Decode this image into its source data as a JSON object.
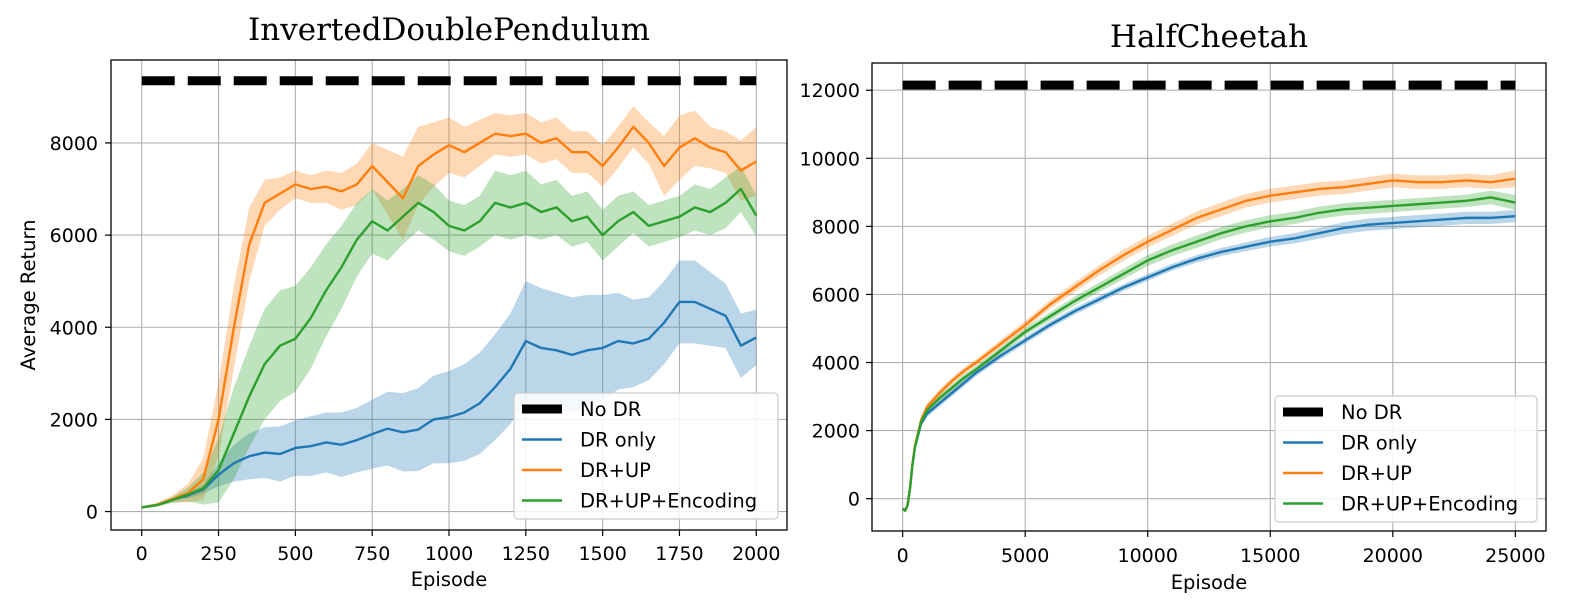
{
  "chart_data": [
    {
      "type": "line",
      "title": "InvertedDoublePendulum",
      "xlabel": "Episode",
      "ylabel": "Average Return",
      "xlim": [
        -100,
        2100
      ],
      "ylim": [
        -400,
        9800
      ],
      "xticks": [
        0,
        250,
        500,
        750,
        1000,
        1250,
        1500,
        1750,
        2000
      ],
      "yticks": [
        0,
        2000,
        4000,
        6000,
        8000
      ],
      "grid": true,
      "legend_position": "lower right",
      "baseline": {
        "name": "No DR",
        "value": 9350,
        "color": "#000000"
      },
      "series": [
        {
          "name": "DR only",
          "color": "#1f77b4",
          "x": [
            0,
            50,
            100,
            150,
            200,
            250,
            300,
            350,
            400,
            450,
            500,
            550,
            600,
            650,
            700,
            750,
            800,
            850,
            900,
            950,
            1000,
            1050,
            1100,
            1150,
            1200,
            1250,
            1300,
            1350,
            1400,
            1450,
            1500,
            1550,
            1600,
            1650,
            1700,
            1750,
            1800,
            1850,
            1900,
            1950,
            2000
          ],
          "values": [
            90,
            140,
            260,
            350,
            480,
            800,
            1050,
            1200,
            1280,
            1250,
            1380,
            1420,
            1500,
            1450,
            1550,
            1680,
            1800,
            1720,
            1780,
            2000,
            2050,
            2150,
            2350,
            2700,
            3100,
            3700,
            3550,
            3500,
            3400,
            3500,
            3550,
            3700,
            3650,
            3750,
            4100,
            4550,
            4550,
            4400,
            4250,
            3600,
            3780
          ],
          "band_width": [
            20,
            30,
            40,
            60,
            100,
            250,
            400,
            500,
            550,
            600,
            600,
            650,
            650,
            700,
            700,
            750,
            800,
            850,
            900,
            950,
            1000,
            1050,
            1100,
            1150,
            1200,
            1300,
            1300,
            1250,
            1250,
            1200,
            1150,
            1050,
            950,
            900,
            900,
            900,
            900,
            800,
            700,
            700,
            600
          ]
        },
        {
          "name": "DR+UP",
          "color": "#ff7f0e",
          "x": [
            0,
            50,
            100,
            150,
            200,
            250,
            300,
            350,
            400,
            450,
            500,
            550,
            600,
            650,
            700,
            750,
            800,
            850,
            900,
            950,
            1000,
            1050,
            1100,
            1150,
            1200,
            1250,
            1300,
            1350,
            1400,
            1450,
            1500,
            1550,
            1600,
            1650,
            1700,
            1750,
            1800,
            1850,
            1900,
            1950,
            2000
          ],
          "values": [
            90,
            150,
            270,
            400,
            700,
            2000,
            4000,
            5800,
            6700,
            6900,
            7100,
            7000,
            7050,
            6950,
            7100,
            7500,
            7150,
            6800,
            7500,
            7750,
            7950,
            7800,
            8000,
            8200,
            8150,
            8200,
            8000,
            8100,
            7800,
            7800,
            7500,
            7900,
            8350,
            8000,
            7500,
            7900,
            8100,
            7900,
            7800,
            7400,
            7600
          ],
          "band_width": [
            20,
            40,
            80,
            200,
            450,
            800,
            900,
            800,
            500,
            350,
            300,
            300,
            350,
            400,
            450,
            500,
            700,
            900,
            850,
            700,
            600,
            550,
            500,
            450,
            450,
            450,
            450,
            450,
            450,
            450,
            450,
            450,
            450,
            450,
            650,
            700,
            600,
            450,
            450,
            650,
            750
          ]
        },
        {
          "name": "DR+UP+Encoding",
          "color": "#2ca02c",
          "x": [
            0,
            50,
            100,
            150,
            200,
            250,
            300,
            350,
            400,
            450,
            500,
            550,
            600,
            650,
            700,
            750,
            800,
            850,
            900,
            950,
            1000,
            1050,
            1100,
            1150,
            1200,
            1250,
            1300,
            1350,
            1400,
            1450,
            1500,
            1550,
            1600,
            1650,
            1700,
            1750,
            1800,
            1850,
            1900,
            1950,
            2000
          ],
          "values": [
            90,
            140,
            250,
            370,
            500,
            900,
            1700,
            2500,
            3200,
            3600,
            3750,
            4200,
            4800,
            5300,
            5900,
            6300,
            6100,
            6400,
            6700,
            6500,
            6200,
            6100,
            6300,
            6700,
            6600,
            6700,
            6500,
            6600,
            6300,
            6400,
            6000,
            6300,
            6500,
            6200,
            6300,
            6400,
            6600,
            6500,
            6700,
            7000,
            6420
          ],
          "band_width": [
            20,
            30,
            60,
            150,
            350,
            700,
            1000,
            1100,
            1200,
            1200,
            1150,
            1100,
            1000,
            900,
            800,
            700,
            650,
            600,
            600,
            600,
            550,
            550,
            550,
            700,
            700,
            700,
            600,
            600,
            550,
            550,
            550,
            550,
            450,
            450,
            450,
            450,
            500,
            500,
            550,
            500,
            450
          ]
        }
      ]
    },
    {
      "type": "line",
      "title": "HalfCheetah",
      "xlabel": "Episode",
      "ylabel": "",
      "xlim": [
        -1250,
        26250
      ],
      "ylim": [
        -950,
        12800
      ],
      "xticks": [
        0,
        5000,
        10000,
        15000,
        20000,
        25000
      ],
      "yticks": [
        0,
        2000,
        4000,
        6000,
        8000,
        10000,
        12000
      ],
      "grid": true,
      "legend_position": "lower right",
      "baseline": {
        "name": "No DR",
        "value": 12150,
        "color": "#000000"
      },
      "series": [
        {
          "name": "DR only",
          "color": "#1f77b4",
          "x": [
            0,
            100,
            200,
            300,
            400,
            500,
            750,
            1000,
            1500,
            2000,
            2500,
            3000,
            4000,
            5000,
            6000,
            7000,
            8000,
            9000,
            10000,
            11000,
            12000,
            13000,
            14000,
            15000,
            16000,
            17000,
            18000,
            19000,
            20000,
            21000,
            22000,
            23000,
            24000,
            25000
          ],
          "values": [
            -300,
            -350,
            -200,
            300,
            1000,
            1500,
            2200,
            2500,
            2800,
            3100,
            3400,
            3700,
            4200,
            4650,
            5100,
            5500,
            5850,
            6200,
            6500,
            6800,
            7050,
            7250,
            7400,
            7550,
            7650,
            7800,
            7950,
            8050,
            8100,
            8150,
            8200,
            8250,
            8250,
            8300
          ],
          "band_width": [
            50,
            50,
            50,
            60,
            70,
            80,
            100,
            100,
            100,
            100,
            100,
            100,
            100,
            100,
            100,
            100,
            100,
            100,
            100,
            100,
            110,
            120,
            130,
            140,
            150,
            160,
            170,
            180,
            180,
            180,
            180,
            180,
            180,
            180
          ]
        },
        {
          "name": "DR+UP",
          "color": "#ff7f0e",
          "x": [
            0,
            100,
            200,
            300,
            400,
            500,
            750,
            1000,
            1500,
            2000,
            2500,
            3000,
            4000,
            5000,
            6000,
            7000,
            8000,
            9000,
            10000,
            11000,
            12000,
            13000,
            14000,
            15000,
            16000,
            17000,
            18000,
            19000,
            20000,
            21000,
            22000,
            23000,
            24000,
            25000
          ],
          "values": [
            -300,
            -350,
            -200,
            300,
            1000,
            1550,
            2300,
            2700,
            3100,
            3450,
            3750,
            4000,
            4550,
            5100,
            5700,
            6200,
            6700,
            7150,
            7550,
            7900,
            8250,
            8500,
            8750,
            8900,
            9000,
            9100,
            9150,
            9250,
            9350,
            9300,
            9300,
            9350,
            9300,
            9400
          ],
          "band_width": [
            50,
            50,
            50,
            60,
            70,
            80,
            100,
            100,
            100,
            100,
            100,
            100,
            110,
            120,
            130,
            140,
            150,
            160,
            170,
            180,
            190,
            200,
            200,
            200,
            200,
            200,
            200,
            200,
            200,
            200,
            200,
            200,
            200,
            250
          ]
        },
        {
          "name": "DR+UP+Encoding",
          "color": "#2ca02c",
          "x": [
            0,
            100,
            200,
            300,
            400,
            500,
            750,
            1000,
            1500,
            2000,
            2500,
            3000,
            4000,
            5000,
            6000,
            7000,
            8000,
            9000,
            10000,
            11000,
            12000,
            13000,
            14000,
            15000,
            16000,
            17000,
            18000,
            19000,
            20000,
            21000,
            22000,
            23000,
            24000,
            25000
          ],
          "values": [
            -300,
            -350,
            -200,
            300,
            1000,
            1500,
            2250,
            2600,
            2950,
            3250,
            3550,
            3800,
            4350,
            4900,
            5350,
            5800,
            6200,
            6600,
            7000,
            7300,
            7550,
            7800,
            8000,
            8150,
            8250,
            8400,
            8500,
            8550,
            8600,
            8650,
            8700,
            8750,
            8850,
            8700
          ],
          "band_width": [
            50,
            50,
            50,
            60,
            70,
            80,
            100,
            100,
            100,
            100,
            100,
            100,
            100,
            110,
            120,
            130,
            140,
            150,
            160,
            170,
            180,
            180,
            180,
            180,
            180,
            180,
            180,
            180,
            180,
            180,
            180,
            180,
            200,
            220
          ]
        }
      ]
    }
  ]
}
